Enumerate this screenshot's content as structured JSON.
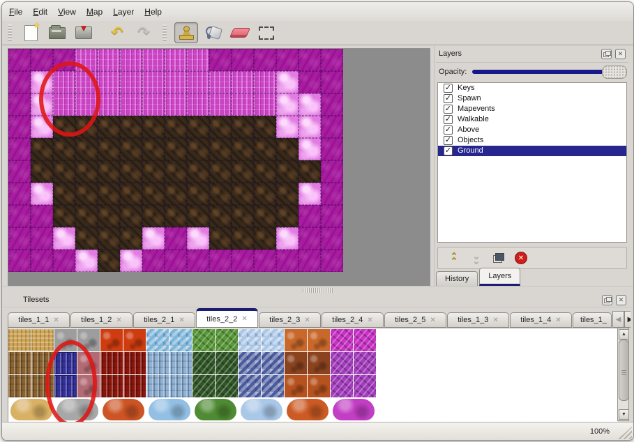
{
  "menu": {
    "items": [
      "File",
      "Edit",
      "View",
      "Map",
      "Layer",
      "Help"
    ]
  },
  "toolbar": {
    "tools": [
      "new-file",
      "open-file",
      "save-file",
      "undo",
      "redo",
      "stamp-tool",
      "fill-tool",
      "eraser-tool",
      "rect-select-tool"
    ],
    "selected_tool": "stamp-tool"
  },
  "map": {
    "backdrop_color": "#8c8c8c",
    "tile_colors": {
      "M": "#a91ba1",
      "P": "#c944c2",
      "W": "#e27ce2",
      "D": "#38291b"
    },
    "grid": [
      "MMMPPPPPPMMMMMM",
      "MWPPPPPPPPPPWMM",
      "MWPPPPPPPPPPWWM",
      "MWDDDDDDDDDDWWM",
      "MDDDDDDDDDDDDWM",
      "MDDDDDDDDDDDDDM",
      "MWDDDDDDDDDDDWM",
      "MMDDDDDDDDDDDMM",
      "MMWDDDWMWDDDWMM",
      "MMMWDWMMMMMMMMM"
    ],
    "annotation_circle_color": "#df1612"
  },
  "layers_panel": {
    "title": "Layers",
    "opacity_label": "Opacity:",
    "layers": [
      {
        "label": "Keys",
        "checked": true
      },
      {
        "label": "Spawn",
        "checked": true
      },
      {
        "label": "Mapevents",
        "checked": true
      },
      {
        "label": "Walkable",
        "checked": true
      },
      {
        "label": "Above",
        "checked": true
      },
      {
        "label": "Objects",
        "checked": true
      },
      {
        "label": "Ground",
        "checked": true
      }
    ],
    "selected_layer": "Ground",
    "selected_row_color": "#26268e",
    "tabs": [
      "History",
      "Layers"
    ],
    "active_tab": "Layers"
  },
  "tilesets_panel": {
    "title": "Tilesets",
    "tabs": [
      "tiles_1_1",
      "tiles_1_2",
      "tiles_2_1",
      "tiles_2_2",
      "tiles_2_3",
      "tiles_2_4",
      "tiles_2_5",
      "tiles_1_3",
      "tiles_1_4",
      "tiles_1_"
    ],
    "active_tab": "tiles_2_2",
    "close_glyph": "✕",
    "palette": {
      "t": "#cfa558",
      "g": "#9d9d9d",
      "l": "#cf3c10",
      "w": "#7cb6da",
      "v": "#579738",
      "c": "#aac8e8",
      "o": "#c8682a",
      "m": "#c831c4",
      "k": "#8a6330",
      "S": "#33319c",
      "r": "#b26b74",
      "f": "#8c150b",
      "i": "#8fb2d6",
      "V": "#2f5526",
      "C": "#4a5c9e",
      "B": "#8a431e",
      "O": "#b5521e",
      "M": "#a43cbe"
    },
    "grid_rows": [
      "ttggllwwvvccoomm",
      "kkSrffiiVVCCBBMM",
      "kkSrffiiVVCCOOMM"
    ],
    "blob_colors": [
      "#d9b164",
      "#a7a7a7",
      "#cd5424",
      "#92bfe3",
      "#4e8b32",
      "#a9c7e7",
      "#cc5a24",
      "#c23ec4"
    ],
    "selected_tile_color": "#33319c",
    "annotation_circle_color": "#df1612"
  },
  "status_bar": {
    "zoom_level": "100%"
  }
}
